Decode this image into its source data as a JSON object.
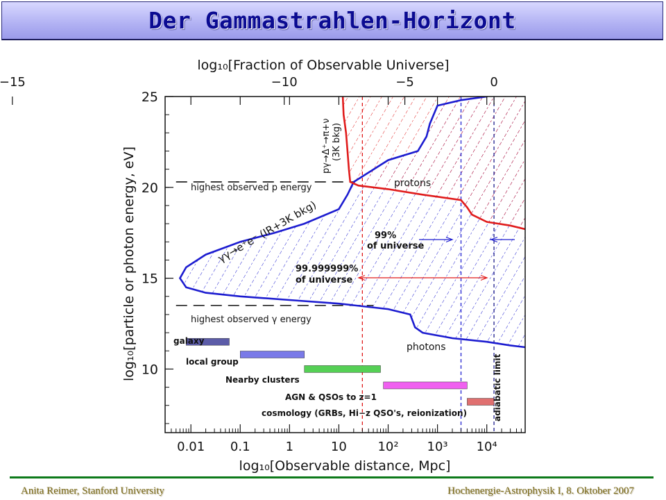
{
  "title": "Der Gammastrahlen-Horizont",
  "footer": {
    "left": "Anita Reimer, Stanford University",
    "right": "Hochenergie-Astrophysik I, 8. Oktober 2007"
  },
  "colors": {
    "red": "#e01b1b",
    "blue": "#1c1cd0",
    "title": "#0b0b92",
    "footer_line": "#0d7a1a"
  },
  "chart_data": {
    "type": "line",
    "xlabel": "log₁₀[Observable distance, Mpc]",
    "ylabel": "log₁₀[particle or photon energy, eV]",
    "x2label": "log₁₀[Fraction of Observable Universe]",
    "xscale": "log",
    "xlim": [
      0.003,
      60000
    ],
    "ylim": [
      6.5,
      25
    ],
    "x_ticks": [
      {
        "value": 0.01,
        "label": "0.01"
      },
      {
        "value": 0.1,
        "label": "0.1"
      },
      {
        "value": 1,
        "label": "1"
      },
      {
        "value": 10,
        "label": "10"
      },
      {
        "value": 100,
        "label": "10²"
      },
      {
        "value": 1000,
        "label": "10³"
      },
      {
        "value": 10000,
        "label": "10⁴"
      }
    ],
    "y_ticks": [
      {
        "value": 10,
        "label": "10"
      },
      {
        "value": 15,
        "label": "15"
      },
      {
        "value": 20,
        "label": "20"
      },
      {
        "value": 25,
        "label": "25"
      }
    ],
    "x2_ticks": [
      {
        "value": 2.4e-06,
        "label": "−15"
      },
      {
        "value": 0.78,
        "label": "−10"
      },
      {
        "value": 218,
        "label": "−5"
      },
      {
        "value": 14000,
        "label": "0"
      }
    ],
    "series": [
      {
        "name": "photons",
        "color": "#1c1cd0",
        "points": [
          [
            20000,
            25.5
          ],
          [
            10000,
            25
          ],
          [
            3000,
            24.8
          ],
          [
            1000,
            24.5
          ],
          [
            700,
            23.5
          ],
          [
            600,
            22.8
          ],
          [
            400,
            22
          ],
          [
            100,
            21.5
          ],
          [
            20,
            20.3
          ],
          [
            15,
            19.6
          ],
          [
            10,
            18.8
          ],
          [
            2,
            18
          ],
          [
            0.5,
            17.5
          ],
          [
            0.1,
            17
          ],
          [
            0.02,
            16.3
          ],
          [
            0.008,
            15.6
          ],
          [
            0.006,
            15
          ],
          [
            0.008,
            14.5
          ],
          [
            0.02,
            14.2
          ],
          [
            0.1,
            14
          ],
          [
            1,
            13.8
          ],
          [
            10,
            13.6
          ],
          [
            100,
            13.3
          ],
          [
            280,
            13
          ],
          [
            350,
            12.3
          ],
          [
            500,
            12
          ],
          [
            2000,
            11.7
          ],
          [
            10000,
            11.5
          ],
          [
            30000,
            11.3
          ],
          [
            60000,
            11.2
          ]
        ]
      },
      {
        "name": "protons",
        "color": "#e01b1b",
        "points": [
          [
            12,
            25
          ],
          [
            12.5,
            24
          ],
          [
            14,
            23
          ],
          [
            15,
            22
          ],
          [
            16,
            21
          ],
          [
            17,
            20.3
          ],
          [
            25,
            20.1
          ],
          [
            100,
            19.9
          ],
          [
            500,
            19.6
          ],
          [
            3000,
            19.3
          ],
          [
            4000,
            18.9
          ],
          [
            5000,
            18.5
          ],
          [
            10000,
            18.1
          ],
          [
            30000,
            17.9
          ],
          [
            60000,
            17.7
          ]
        ]
      }
    ],
    "reference_lines": [
      {
        "axis": "y",
        "value": 20.3,
        "label": "highest observed p energy",
        "x_range": [
          0.005,
          20
        ],
        "style": "dashed"
      },
      {
        "axis": "y",
        "value": 13.5,
        "label": "highest observed γ energy",
        "x_range": [
          0.005,
          50
        ],
        "style": "dashed"
      },
      {
        "axis": "x",
        "value": 30,
        "style": "dashed",
        "color": "#e01b1b"
      },
      {
        "axis": "x",
        "value": 3000,
        "style": "dashed",
        "color": "#1c1cd0"
      },
      {
        "axis": "x",
        "value": 14000,
        "style": "dashed",
        "color": "#1a1a8a"
      }
    ],
    "ranges": [
      {
        "label": "galaxy",
        "x0": 0.008,
        "x1": 0.06,
        "y": 11.5,
        "color": "#5c5ca8",
        "label_color": "#2a2a8a"
      },
      {
        "label": "local group",
        "x0": 0.1,
        "x1": 2,
        "y": 10.8,
        "color": "#7a7ae8",
        "label_color": "#1c1cd0"
      },
      {
        "label": "Nearby clusters",
        "x0": 2,
        "x1": 70,
        "y": 10,
        "color": "#55d055",
        "label_color": "#1aa01a"
      },
      {
        "label": "AGN & QSOs to z=1",
        "x0": 80,
        "x1": 4000,
        "y": 9.1,
        "color": "#f060f0",
        "label_color": "#e020e0"
      },
      {
        "label": "cosmology (GRBs, Hi−z QSO's, reionization)",
        "x0": 4000,
        "x1": 14000,
        "y": 8.2,
        "color": "#e07070",
        "label_color": "#b02020"
      }
    ],
    "annotations": [
      {
        "text": "γγ→e⁺e⁻ (IR+3K bkg)",
        "color": "#111111"
      },
      {
        "text": "pγ→Δ⁺→π+ν",
        "color": "#111111"
      },
      {
        "text": "(3K bkg)",
        "color": "#111111"
      },
      {
        "text": "protons",
        "color": "#111111"
      },
      {
        "text": "photons",
        "color": "#111111"
      },
      {
        "text": "99%",
        "color": "#1c1cd0"
      },
      {
        "text": "of universe",
        "color": "#1c1cd0"
      },
      {
        "text": "99.999999%",
        "color": "#e01b1b"
      },
      {
        "text": "of universe",
        "color": "#e01b1b"
      },
      {
        "text": "adiabatic limit",
        "color": "#b02020"
      }
    ]
  }
}
